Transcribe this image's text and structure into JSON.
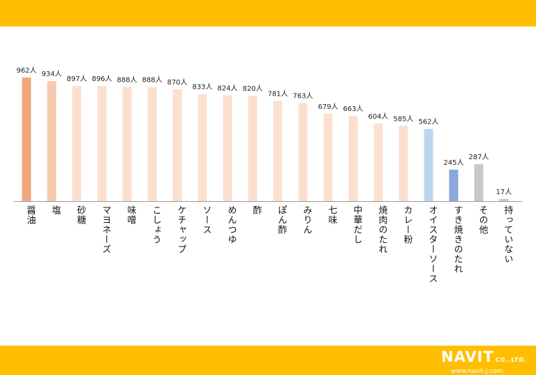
{
  "header_band_color": "#ffbf00",
  "footer_band_color": "#ffbf00",
  "logo": {
    "brand": "NAVIT",
    "suffix": "CO.,LTD.",
    "url": "www.navit-j.com"
  },
  "chart_data": {
    "type": "bar",
    "unit_suffix": "人",
    "categories": [
      "醤油",
      "塩",
      "砂糖",
      "マヨネーズ",
      "味噌",
      "こしょう",
      "ケチャップ",
      "ソース",
      "めんつゆ",
      "酢",
      "ぽん酢",
      "みりん",
      "七味",
      "中華だし",
      "焼肉のたれ",
      "カレー粉",
      "オイスターソース",
      "すき焼きのたれ",
      "その他",
      "持っていない"
    ],
    "values": [
      962,
      934,
      897,
      896,
      888,
      888,
      870,
      833,
      824,
      820,
      781,
      763,
      679,
      663,
      604,
      585,
      562,
      245,
      287,
      17
    ],
    "colors": [
      "#f0a77c",
      "#f7c9ad",
      "#fbe0d0",
      "#fbe0d0",
      "#fbe0d0",
      "#fbe0d0",
      "#fbe0d0",
      "#fbe0d0",
      "#fbe0d0",
      "#fbe0d0",
      "#fbe0d0",
      "#fbe0d0",
      "#fbe0d0",
      "#fbe0d0",
      "#fbe0d0",
      "#fbe0d0",
      "#bcd6ee",
      "#8aa8dc",
      "#c8c8c8",
      "#c8c8c8"
    ],
    "ylim": [
      0,
      1000
    ],
    "grid": false,
    "legend": "none"
  }
}
